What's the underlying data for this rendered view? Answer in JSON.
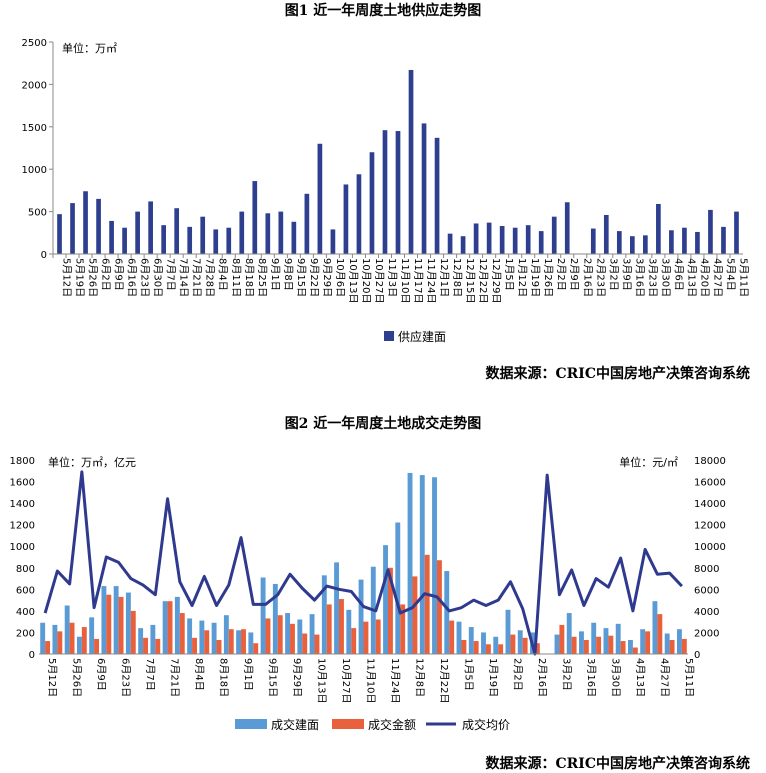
{
  "chart_data": [
    {
      "type": "bar",
      "title": "图1  近一年周度土地供应走势图",
      "unit_label": "单位：万㎡",
      "source": "数据来源：CRIC中国房地产决策咨询系统",
      "ylim": [
        0,
        2500
      ],
      "yticks": [
        0,
        500,
        1000,
        1500,
        2000,
        2500
      ],
      "grid": false,
      "legend_position": "bottom",
      "categories": [
        "5月12日",
        "5月19日",
        "5月26日",
        "6月2日",
        "6月9日",
        "6月16日",
        "6月23日",
        "6月30日",
        "7月7日",
        "7月14日",
        "7月21日",
        "7月28日",
        "8月4日",
        "8月11日",
        "8月18日",
        "8月25日",
        "9月1日",
        "9月8日",
        "9月15日",
        "9月22日",
        "9月29日",
        "10月6日",
        "10月13日",
        "10月20日",
        "10月27日",
        "11月3日",
        "11月10日",
        "11月17日",
        "11月24日",
        "12月1日",
        "12月8日",
        "12月15日",
        "12月22日",
        "12月29日",
        "1月5日",
        "1月12日",
        "1月19日",
        "1月26日",
        "2月2日",
        "2月9日",
        "2月16日",
        "2月23日",
        "3月2日",
        "3月9日",
        "3月16日",
        "3月23日",
        "3月30日",
        "4月6日",
        "4月13日",
        "4月20日",
        "4月27日",
        "5月4日",
        "5月11日"
      ],
      "series": [
        {
          "name": "供应建面",
          "color": "#2e3f8f",
          "values": [
            470,
            600,
            740,
            650,
            390,
            310,
            500,
            620,
            340,
            540,
            320,
            440,
            290,
            310,
            500,
            860,
            480,
            500,
            380,
            710,
            1300,
            290,
            820,
            940,
            1200,
            1460,
            1450,
            2170,
            1540,
            1370,
            240,
            210,
            360,
            370,
            330,
            310,
            340,
            270,
            440,
            610,
            0,
            300,
            460,
            270,
            210,
            220,
            590,
            280,
            310,
            260,
            520,
            320,
            500
          ]
        }
      ]
    },
    {
      "type": "bar+line",
      "title": "图2  近一年周度土地成交走势图",
      "unit_left": "单位：万㎡，亿元",
      "unit_right": "单位：元/㎡",
      "source": "数据来源：CRIC中国房地产决策咨询系统",
      "ylim_left": [
        0,
        1800
      ],
      "yticks_left": [
        0,
        200,
        400,
        600,
        800,
        1000,
        1200,
        1400,
        1600,
        1800
      ],
      "ylim_right": [
        0,
        18000
      ],
      "yticks_right": [
        0,
        2000,
        4000,
        6000,
        8000,
        10000,
        12000,
        14000,
        16000,
        18000
      ],
      "grid": false,
      "legend_position": "bottom",
      "categories": [
        "5月12日",
        "5月19日",
        "5月26日",
        "6月2日",
        "6月9日",
        "6月16日",
        "6月23日",
        "6月30日",
        "7月7日",
        "7月14日",
        "7月21日",
        "7月28日",
        "8月4日",
        "8月11日",
        "8月18日",
        "8月25日",
        "9月1日",
        "9月8日",
        "9月15日",
        "9月22日",
        "9月29日",
        "10月6日",
        "10月13日",
        "10月20日",
        "10月27日",
        "11月3日",
        "11月10日",
        "11月17日",
        "11月24日",
        "12月1日",
        "12月8日",
        "12月15日",
        "12月22日",
        "12月29日",
        "1月5日",
        "1月12日",
        "1月19日",
        "1月26日",
        "2月2日",
        "2月9日",
        "2月16日",
        "2月23日",
        "3月2日",
        "3月9日",
        "3月16日",
        "3月23日",
        "3月30日",
        "4月6日",
        "4月13日",
        "4月20日",
        "4月27日",
        "5月4日",
        "5月11日"
      ],
      "labeled_categories": [
        "5月12日",
        "5月26日",
        "6月9日",
        "6月23日",
        "7月7日",
        "7月21日",
        "8月4日",
        "8月18日",
        "9月1日",
        "9月15日",
        "9月29日",
        "10月13日",
        "10月27日",
        "11月10日",
        "11月24日",
        "12月8日",
        "12月22日",
        "1月5日",
        "1月19日",
        "2月2日",
        "2月16日",
        "3月2日",
        "3月16日",
        "3月30日",
        "4月13日",
        "4月27日",
        "5月11日"
      ],
      "series": [
        {
          "name": "成交建面",
          "kind": "bar",
          "axis": "left",
          "color": "#5b9bd5",
          "values": [
            290,
            270,
            450,
            160,
            340,
            630,
            630,
            570,
            240,
            270,
            490,
            530,
            330,
            310,
            290,
            360,
            220,
            200,
            710,
            650,
            380,
            320,
            370,
            730,
            850,
            410,
            690,
            810,
            1010,
            1220,
            1680,
            1660,
            1640,
            770,
            300,
            250,
            200,
            160,
            410,
            220,
            200,
            0,
            180,
            380,
            210,
            290,
            240,
            280,
            130,
            230,
            490,
            190,
            230
          ]
        },
        {
          "name": "成交金额",
          "kind": "bar",
          "axis": "left",
          "color": "#e8603c",
          "values": [
            120,
            210,
            290,
            250,
            140,
            550,
            530,
            400,
            150,
            140,
            490,
            380,
            150,
            220,
            130,
            230,
            230,
            100,
            330,
            360,
            280,
            190,
            180,
            460,
            510,
            240,
            300,
            320,
            800,
            460,
            720,
            920,
            870,
            310,
            130,
            120,
            90,
            90,
            180,
            150,
            100,
            0,
            270,
            160,
            130,
            160,
            170,
            120,
            60,
            210,
            370,
            130,
            140
          ]
        },
        {
          "name": "成交均价",
          "kind": "line",
          "axis": "right",
          "color": "#2f3a8f",
          "values": [
            3800,
            7700,
            6500,
            16900,
            4300,
            9000,
            8500,
            7000,
            6400,
            5500,
            14400,
            6700,
            4500,
            7200,
            4500,
            6400,
            10800,
            4600,
            4600,
            5500,
            7400,
            6100,
            5000,
            6300,
            6000,
            5800,
            4400,
            4000,
            7800,
            3800,
            4300,
            5600,
            5300,
            4000,
            4300,
            5000,
            4500,
            5000,
            6700,
            4200,
            0,
            16600,
            5500,
            7800,
            4500,
            7000,
            6200,
            8900,
            4000,
            9700,
            7400,
            7500,
            6300
          ]
        }
      ]
    }
  ]
}
